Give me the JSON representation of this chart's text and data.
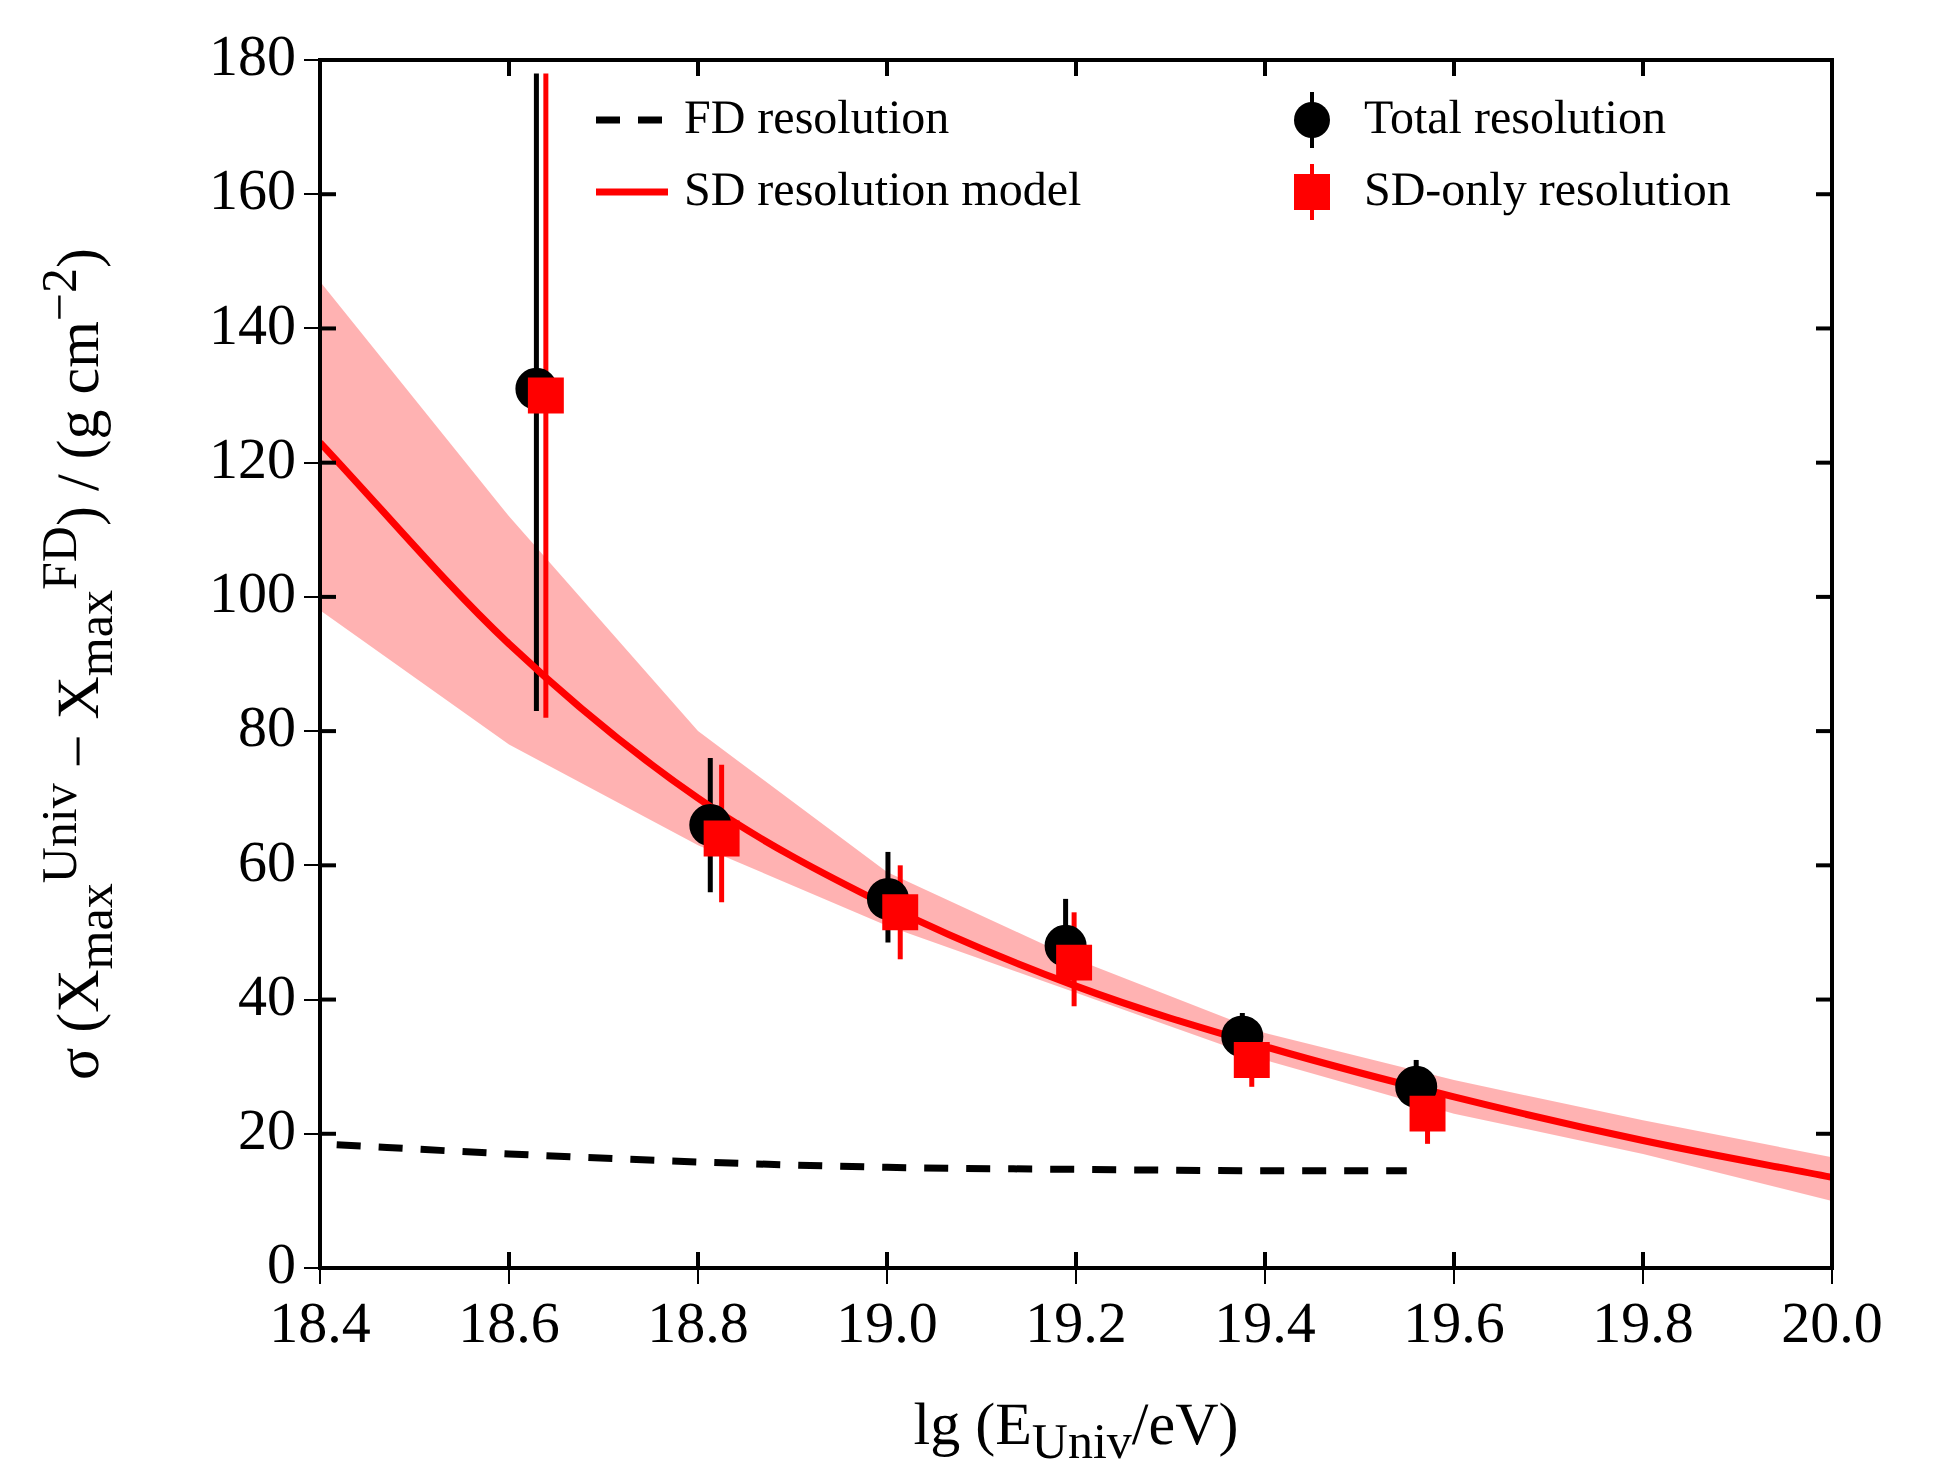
{
  "chart_data": {
    "type": "line",
    "xlabel": "lg (E$_{Univ}$/eV)",
    "ylabel": "σ (X$_{max}$$^{Univ}$ − X$_{max}$$^{FD}$) / (g cm$^{−2}$)",
    "xlim": [
      18.4,
      20.0
    ],
    "xticks": [
      {
        "value": 18.4,
        "label": "18.4"
      },
      {
        "value": 18.6,
        "label": "18.6"
      },
      {
        "value": 18.8,
        "label": "18.8"
      },
      {
        "value": 19.0,
        "label": "19.0"
      },
      {
        "value": 19.2,
        "label": "19.2"
      },
      {
        "value": 19.4,
        "label": "19.4"
      },
      {
        "value": 19.6,
        "label": "19.6"
      },
      {
        "value": 19.8,
        "label": "19.8"
      },
      {
        "value": 20.0,
        "label": "20.0"
      }
    ],
    "ylim": [
      0,
      180
    ],
    "yticks": [
      0,
      20,
      40,
      60,
      80,
      100,
      120,
      140,
      160,
      180
    ],
    "grid": false,
    "legend": "top",
    "series": [
      {
        "name": "FD resolution",
        "type": "line",
        "line_style": "dashed",
        "marker": "none",
        "color": "#000000",
        "x": [
          18.4,
          18.6,
          18.8,
          19.0,
          19.2,
          19.4,
          19.55
        ],
        "values": [
          18.5,
          17,
          15.8,
          15,
          14.7,
          14.5,
          14.5
        ]
      },
      {
        "name": "SD resolution model",
        "type": "line",
        "line_style": "solid",
        "marker": "none",
        "color": "#ff0000",
        "x": [
          18.4,
          18.6,
          18.8,
          19.0,
          19.2,
          19.4,
          19.6,
          19.8,
          20.0
        ],
        "values": [
          123,
          93,
          70,
          54,
          42,
          33,
          25.5,
          19,
          13.5
        ],
        "lower": [
          98,
          78,
          63,
          51,
          41,
          31,
          23,
          17,
          10
        ],
        "upper": [
          147,
          112,
          80,
          59,
          46,
          35,
          28,
          22,
          16.5
        ]
      },
      {
        "name": "Total resolution",
        "type": "scatter",
        "marker": "circle",
        "color": "#000000",
        "x": [
          18.629,
          18.813,
          19.001,
          19.189,
          19.376,
          19.56
        ],
        "values": [
          131,
          66,
          55,
          48,
          34.5,
          27
        ],
        "errors": [
          [
            83,
            178
          ],
          [
            56,
            76
          ],
          [
            48.5,
            62
          ],
          [
            43,
            55
          ],
          [
            34.5,
            38
          ],
          [
            25,
            31
          ]
        ]
      },
      {
        "name": "SD-only resolution",
        "type": "scatter",
        "marker": "square",
        "color": "#ff0000",
        "x": [
          18.639,
          18.825,
          19.014,
          19.198,
          19.386,
          19.572
        ],
        "values": [
          130,
          64,
          53,
          45.5,
          31,
          23
        ],
        "errors": [
          [
            82,
            178
          ],
          [
            54.5,
            75
          ],
          [
            46,
            60
          ],
          [
            39,
            53
          ],
          [
            27,
            31
          ],
          [
            18.5,
            28
          ]
        ]
      }
    ]
  }
}
